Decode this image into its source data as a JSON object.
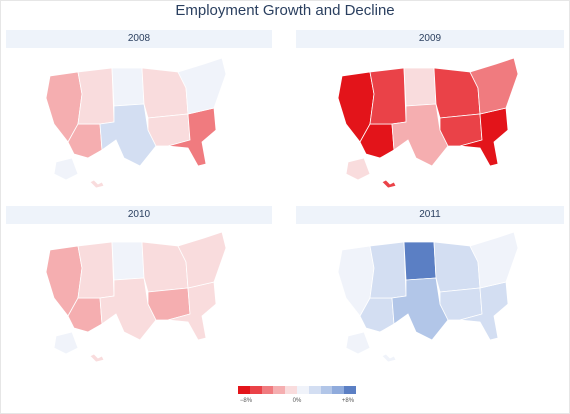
{
  "title": "Employment Growth and Decline",
  "colors": {
    "scale": [
      "#e3141a",
      "#ea4248",
      "#f07b7f",
      "#f5aeb0",
      "#f9dcdd",
      "#f0f3fa",
      "#d3def2",
      "#b2c6e8",
      "#8fabdc",
      "#5b7fc4"
    ],
    "accent": "#2a3f5f",
    "header_bg": "#eef3fa"
  },
  "colorbar": {
    "tick_labels": [
      "−8%",
      "0%",
      "+8%"
    ]
  },
  "chart_data": [
    {
      "type": "choropleth",
      "title": "2008",
      "scale_range": [
        -8,
        8
      ],
      "regions": {
        "west": -2.5,
        "southwest": -2.0,
        "mountain": -0.5,
        "plains_north": 1.5,
        "plains_south": 2.5,
        "midwest": -1.5,
        "south": -1.0,
        "southeast": -3.5,
        "northeast": 0.5,
        "alaska": 1.0,
        "hawaii": -1.5
      }
    },
    {
      "type": "choropleth",
      "title": "2009",
      "scale_range": [
        -8,
        8
      ],
      "regions": {
        "west": -6.5,
        "southwest": -7.5,
        "mountain": -5.0,
        "plains_north": -1.0,
        "plains_south": -2.5,
        "midwest": -6.0,
        "south": -5.0,
        "southeast": -6.5,
        "northeast": -4.5,
        "alaska": -1.0,
        "hawaii": -5.0
      }
    },
    {
      "type": "choropleth",
      "title": "2010",
      "scale_range": [
        -8,
        8
      ],
      "regions": {
        "west": -3.0,
        "southwest": -2.5,
        "mountain": -1.5,
        "plains_north": 1.0,
        "plains_south": -0.5,
        "midwest": -1.0,
        "south": -2.0,
        "southeast": -1.5,
        "northeast": -0.5,
        "alaska": 0.5,
        "hawaii": -1.0
      }
    },
    {
      "type": "choropleth",
      "title": "2011",
      "scale_range": [
        -8,
        8
      ],
      "regions": {
        "west": 1.5,
        "southwest": 2.0,
        "mountain": 2.5,
        "plains_north": 6.5,
        "plains_south": 3.5,
        "midwest": 2.0,
        "south": 2.5,
        "southeast": 3.0,
        "northeast": 1.5,
        "alaska": 1.5,
        "hawaii": 1.5
      }
    }
  ]
}
